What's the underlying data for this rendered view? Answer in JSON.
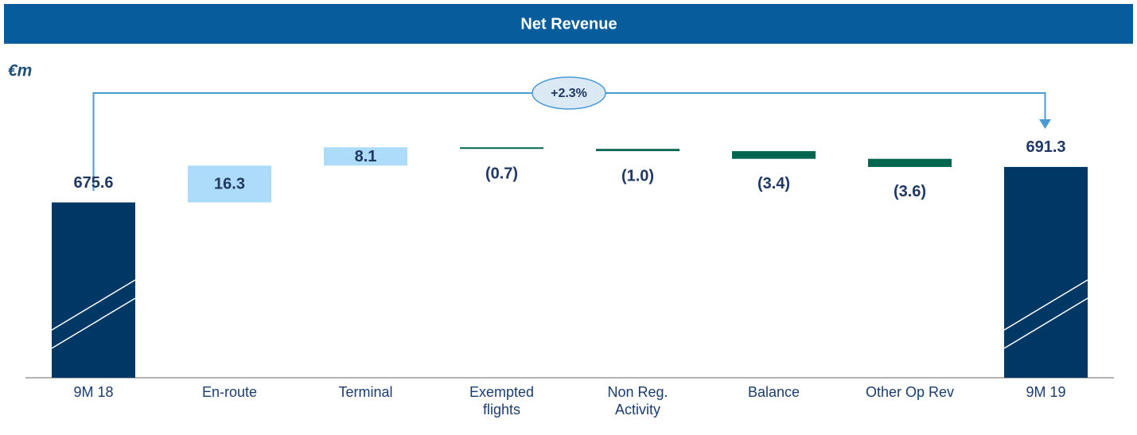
{
  "chart_data": {
    "type": "waterfall",
    "title": "Net Revenue",
    "unit": "€m",
    "annotation": "+2.3%",
    "categories": [
      "9M 18",
      "En-route",
      "Terminal",
      "Exempted flights",
      "Non Reg. Activity",
      "Balance",
      "Other Op Rev",
      "9M 19"
    ],
    "values": [
      675.6,
      16.3,
      8.1,
      -0.7,
      -1.0,
      -3.4,
      -3.6,
      691.3
    ],
    "value_labels": [
      "675.6",
      "16.3",
      "8.1",
      "(0.7)",
      "(1.0)",
      "(3.4)",
      "(3.6)",
      "691.3"
    ],
    "colors": {
      "total": "#003865",
      "increase": "#addcfa",
      "decrease": "#00664f"
    },
    "ylim": [
      598,
      730
    ],
    "axis_break": true
  }
}
